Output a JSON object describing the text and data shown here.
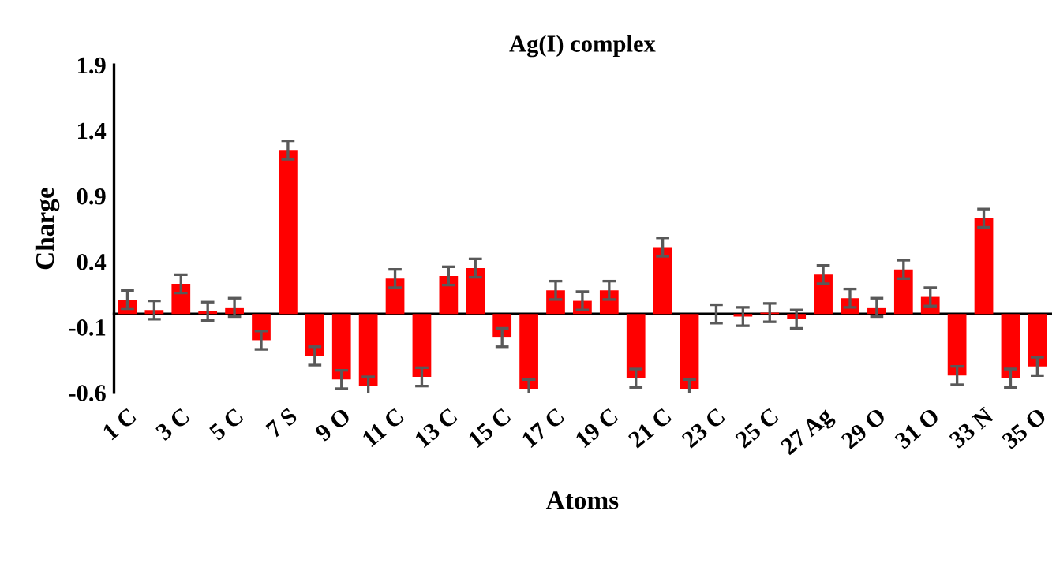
{
  "chart_data": {
    "type": "bar",
    "title": "Ag(I) complex",
    "xlabel": "Atoms",
    "ylabel": "Charge",
    "categories": [
      "1 C",
      null,
      "3 C",
      null,
      "5 C",
      null,
      "7 S",
      null,
      "9 O",
      null,
      "11 C",
      null,
      "13 C",
      null,
      "15 C",
      null,
      "17 C",
      null,
      "19 C",
      null,
      "21 C",
      null,
      "23 C",
      null,
      "25 C",
      null,
      "27 Ag",
      null,
      "29 O",
      null,
      "31 O",
      null,
      "33 N",
      null,
      "35 O"
    ],
    "series": [
      {
        "color": "#ff0000",
        "values": [
          0.11,
          0.03,
          0.23,
          0.02,
          0.05,
          -0.2,
          1.25,
          -0.32,
          -0.5,
          -0.55,
          0.27,
          -0.48,
          0.29,
          0.35,
          -0.18,
          -0.57,
          0.18,
          0.1,
          0.18,
          -0.49,
          0.51,
          -0.57,
          0.0,
          -0.02,
          0.01,
          -0.04,
          0.3,
          0.12,
          0.05,
          0.34,
          0.13,
          -0.47,
          0.73,
          -0.49,
          -0.4
        ],
        "errors": [
          0.07,
          0.07,
          0.07,
          0.07,
          0.07,
          0.07,
          0.07,
          0.07,
          0.07,
          0.07,
          0.07,
          0.07,
          0.07,
          0.07,
          0.07,
          0.07,
          0.07,
          0.07,
          0.07,
          0.07,
          0.07,
          0.07,
          0.07,
          0.07,
          0.07,
          0.07,
          0.07,
          0.07,
          0.07,
          0.07,
          0.07,
          0.07,
          0.07,
          0.07,
          0.07
        ]
      }
    ],
    "ylim": [
      -0.6,
      1.9
    ],
    "yticks": [
      -0.6,
      -0.1,
      0.4,
      0.9,
      1.4,
      1.9
    ],
    "grid": false,
    "legend": false
  }
}
